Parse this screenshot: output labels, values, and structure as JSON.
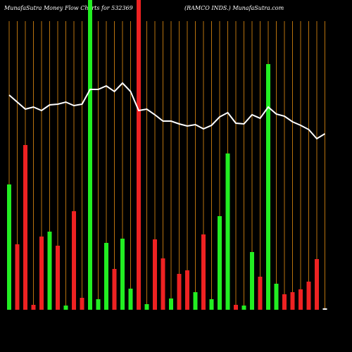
{
  "chart_data": {
    "type": "bar",
    "title": "MunafaSutra  Money Flow  Charts for 532369",
    "subtitle": "(RAMCO INDS.) MunafaSutra.com",
    "ylim": [
      0,
      440
    ],
    "categories": [
      null,
      null,
      null,
      null,
      null,
      null,
      null,
      null,
      null,
      null,
      null,
      null,
      null,
      null,
      null,
      null,
      null,
      null,
      null,
      null,
      null,
      null,
      null,
      null,
      null,
      null,
      null,
      null,
      null,
      null,
      null,
      null,
      null,
      null,
      null,
      null,
      null,
      null,
      null,
      null
    ],
    "values": [
      178,
      93,
      234,
      7,
      104,
      111,
      91,
      6,
      140,
      17,
      440,
      15,
      95,
      58,
      101,
      30,
      440,
      8,
      100,
      73,
      16,
      51,
      56,
      25,
      107,
      15,
      133,
      222,
      7,
      6,
      82,
      47,
      349,
      37,
      22,
      25,
      29,
      40,
      72,
      2
    ],
    "colors": [
      "#22ee22",
      "#ee2222",
      "#ee2222",
      "#ee2222",
      "#ee2222",
      "#22ee22",
      "#ee2222",
      "#22ee22",
      "#ee2222",
      "#ee2222",
      "#22ee22",
      "#22ee22",
      "#22ee22",
      "#ee2222",
      "#22ee22",
      "#22ee22",
      "#ee2222",
      "#22ee22",
      "#ee2222",
      "#ee2222",
      "#22ee22",
      "#ee2222",
      "#ee2222",
      "#22ee22",
      "#ee2222",
      "#22ee22",
      "#22ee22",
      "#22ee22",
      "#ee2222",
      "#22ee22",
      "#22ee22",
      "#ee2222",
      "#22ee22",
      "#22ee22",
      "#ee2222",
      "#ee2222",
      "#ee2222",
      "#ee2222",
      "#ee2222",
      "#ffffff"
    ],
    "line": {
      "color": "#ffffff",
      "values": [
        305,
        295,
        285,
        288,
        283,
        291,
        292,
        295,
        290,
        292,
        313,
        313,
        318,
        310,
        322,
        310,
        283,
        285,
        277,
        268,
        268,
        264,
        261,
        263,
        257,
        262,
        274,
        280,
        265,
        264,
        277,
        272,
        288,
        278,
        275,
        267,
        262,
        256,
        243,
        250
      ]
    }
  }
}
